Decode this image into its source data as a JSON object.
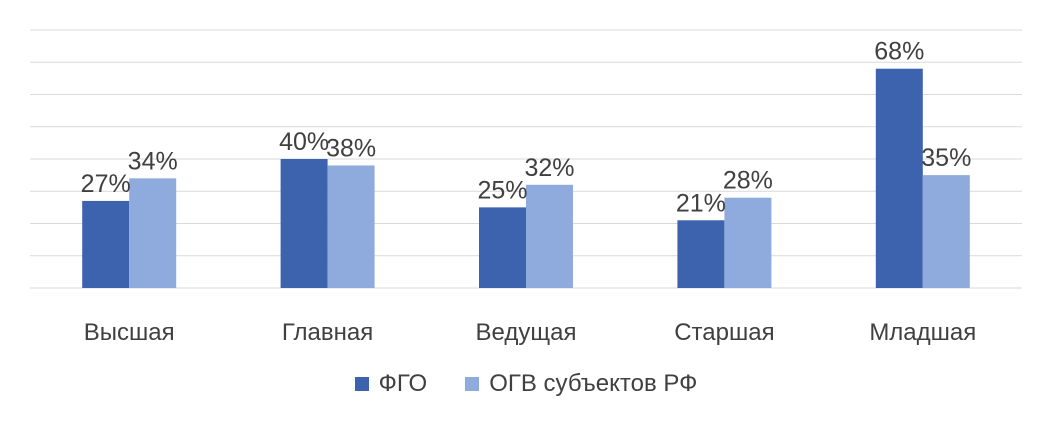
{
  "chart_data": {
    "type": "bar",
    "categories": [
      "Высшая",
      "Главная",
      "Ведущая",
      "Старшая",
      "Младшая"
    ],
    "series": [
      {
        "name": "ФГО",
        "values": [
          27,
          40,
          25,
          21,
          68
        ],
        "labels": [
          "27%",
          "40%",
          "25%",
          "21%",
          "68%"
        ],
        "color": "#3d63ae"
      },
      {
        "name": "ОГВ субъектов РФ",
        "values": [
          34,
          38,
          32,
          28,
          35
        ],
        "labels": [
          "34%",
          "38%",
          "32%",
          "28%",
          "35%"
        ],
        "color": "#8faadc"
      }
    ],
    "ylim": [
      0,
      80
    ],
    "grid": true,
    "legend_position": "bottom",
    "gridline_color": "#d9d9d9"
  }
}
